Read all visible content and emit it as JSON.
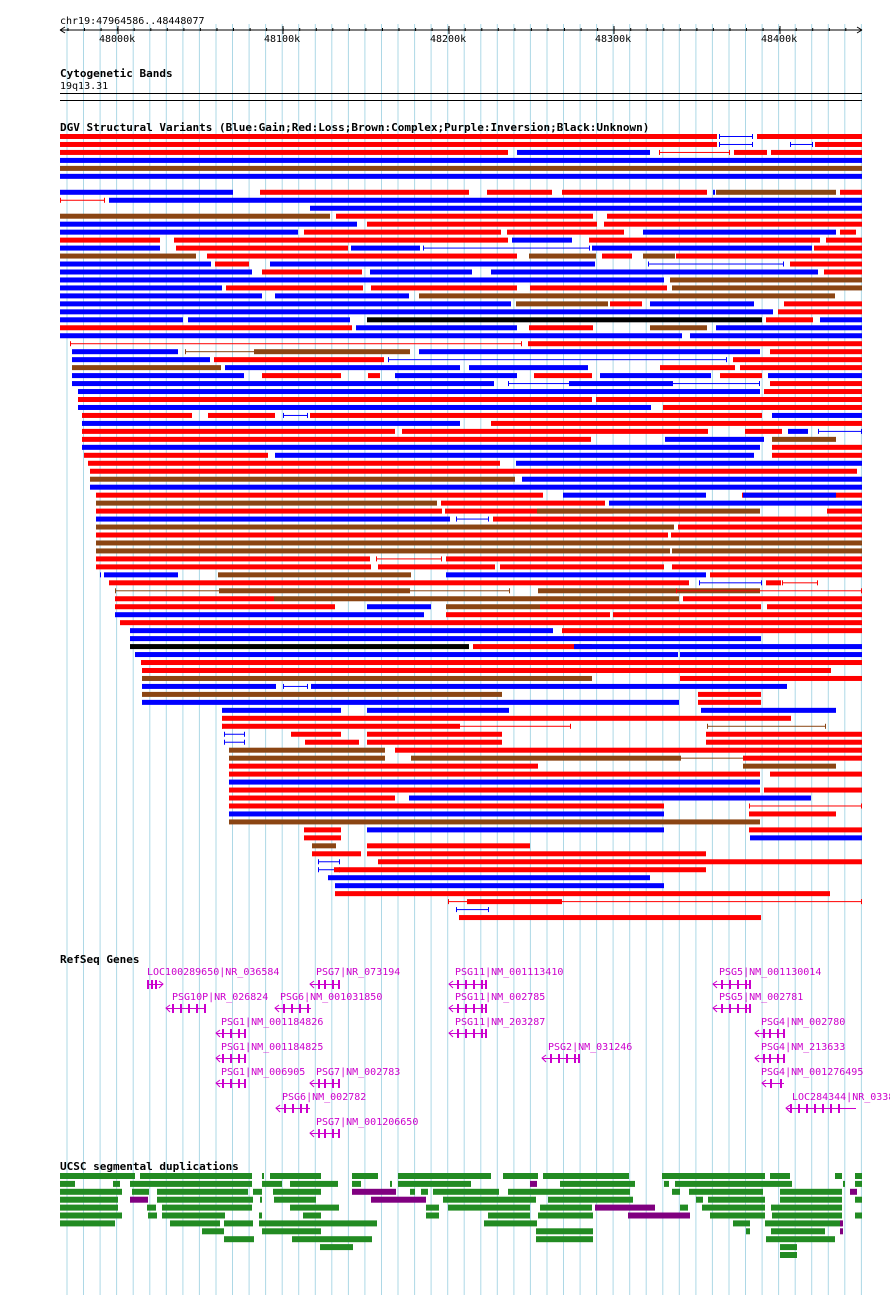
{
  "ruler": {
    "position": "chr19:47964586..48448077",
    "ticks": [
      "48000k",
      "48100k",
      "48200k",
      "48300k",
      "48400k"
    ]
  },
  "cytoband": {
    "title": "Cytogenetic Bands",
    "band": "19q13.31"
  },
  "dgv": {
    "title": "DGV Structural Variants (Blue:Gain;Red:Loss;Brown:Complex;Purple:Inversion;Black:Unknown)"
  },
  "refseq": {
    "title": "RefSeq Genes",
    "genes": [
      "LOC100289650|NR_036584",
      "PSG10P|NR_026824",
      "PSG1|NM_001184826",
      "PSG1|NM_001184825",
      "PSG1|NM_006905",
      "PSG7|NR_073194",
      "PSG6|NM_001031850",
      "PSG7|NM_002783",
      "PSG6|NM_002782",
      "PSG7|NM_001206650",
      "PSG11|NM_001113410",
      "PSG11|NM_002785",
      "PSG11|NM_203287",
      "PSG2|NM_031246",
      "PSG5|NM_001130014",
      "PSG5|NM_002781",
      "PSG4|NM_002780",
      "PSG4|NM_213633",
      "PSG4|NM_001276495",
      "LOC284344|NR_0338"
    ]
  },
  "segdup": {
    "title": "UCSC segmental duplications"
  },
  "colors": {
    "gain": "#0000ff",
    "loss": "#ff0000",
    "complex": "#8b4513",
    "inversion": "#800080",
    "unknown": "#000000",
    "gene": "#cc00cc",
    "segdup": "#228b22",
    "grid": "#add8e6"
  }
}
